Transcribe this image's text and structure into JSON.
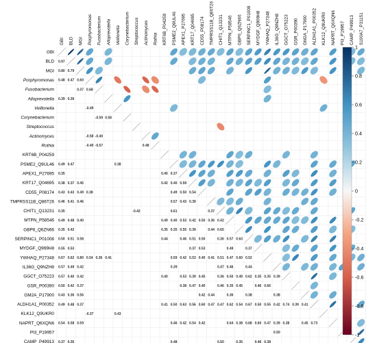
{
  "chart_data": {
    "type": "heatmap",
    "title": "",
    "xlabel": "",
    "ylabel": "",
    "variables": [
      "GBI",
      "BLD",
      "MGI",
      "Porphyromonas",
      "Fusobacterium",
      "Alloprevotella",
      "Veillonella",
      "Corynebacterium",
      "Streptococcus",
      "Actinomyces",
      "Rothia",
      "KRT6B_P04259",
      "PSME2_Q9UL46",
      "APEX1_P27695",
      "KRT17_Q04695",
      "CD55_P08174",
      "TMPRSS11B_Q86T26",
      "CHIT1_Q13231",
      "MTPN_P58546",
      "GBP6_Q6ZN66",
      "SERPINC1_P01008",
      "MYDGF_Q969H8",
      "YWHAQ_P27348",
      "IL36G_Q9NZH8",
      "GGCT_O75223",
      "GSR_P00390",
      "GM2A_P17900",
      "ALDH1A1_P00352",
      "KLK12_Q9UKR0",
      "NAPRT_Q6XQN6",
      "PI3_P19957",
      "CAMP_P49913",
      "S100A7_P31151"
    ],
    "italic_variables": [
      "Porphyromonas",
      "Fusobacterium",
      "Alloprevotella",
      "Veillonella",
      "Corynebacterium",
      "Streptococcus",
      "Actinomyces",
      "Rothia"
    ],
    "lower_triangle": [
      [],
      [
        0.97
      ],
      [
        0.8,
        0.79
      ],
      [
        0.48,
        0.47,
        0.6
      ],
      [
        null,
        null,
        0.37,
        0.68
      ],
      [
        0.39,
        0.39,
        null,
        null,
        null
      ],
      [
        null,
        null,
        null,
        -0.49,
        null,
        null
      ],
      [
        null,
        null,
        null,
        null,
        -0.59,
        0.58,
        null
      ],
      [
        null,
        null,
        null,
        null,
        null,
        null,
        null,
        null
      ],
      [
        null,
        null,
        null,
        -0.58,
        -0.4,
        null,
        null,
        null,
        null
      ],
      [
        null,
        null,
        null,
        -0.4,
        -0.57,
        null,
        null,
        null,
        null,
        0.48
      ],
      [
        null,
        null,
        null,
        null,
        null,
        null,
        null,
        null,
        null,
        null,
        null
      ],
      [
        0.49,
        0.47,
        null,
        null,
        null,
        null,
        0.38,
        null,
        null,
        null,
        null,
        null
      ],
      [
        0.35,
        null,
        null,
        null,
        null,
        null,
        null,
        null,
        null,
        null,
        null,
        0.4,
        0.37
      ],
      [
        0.38,
        0.37,
        0.45,
        null,
        null,
        null,
        null,
        null,
        null,
        null,
        null,
        0.42,
        0.4,
        0.59
      ],
      [
        0.43,
        0.43,
        0.49,
        0.38,
        null,
        null,
        null,
        null,
        null,
        null,
        null,
        null,
        0.49,
        0.5,
        0.54
      ],
      [
        0.46,
        0.41,
        0.46,
        null,
        null,
        null,
        null,
        null,
        null,
        null,
        null,
        null,
        0.57,
        0.43,
        0.39
      ],
      [
        0.35,
        null,
        null,
        null,
        null,
        null,
        null,
        null,
        -0.42,
        null,
        null,
        null,
        0.61,
        null,
        null,
        null,
        0.37
      ],
      [
        0.49,
        0.48,
        0.4,
        null,
        null,
        null,
        null,
        null,
        null,
        null,
        null,
        0.49,
        0.4,
        0.53,
        0.42,
        0.5,
        0.36,
        0.42
      ],
      [
        0.35,
        0.42,
        null,
        null,
        null,
        null,
        null,
        null,
        null,
        null,
        null,
        0.35,
        0.35,
        0.55,
        0.39,
        null,
        0.44,
        0.65
      ],
      [
        0.5,
        0.51,
        0.58,
        null,
        null,
        null,
        null,
        null,
        null,
        null,
        null,
        0.44,
        null,
        0.46,
        0.51,
        0.5,
        null,
        0.36,
        0.57,
        0.63
      ],
      [
        0.55,
        0.53,
        null,
        null,
        null,
        null,
        null,
        null,
        null,
        null,
        null,
        null,
        null,
        null,
        0.37,
        0.53,
        null,
        null,
        0.49,
        null,
        0.37
      ],
      [
        0.67,
        0.62,
        0.8,
        0.54,
        0.36,
        0.41,
        null,
        null,
        null,
        null,
        null,
        null,
        0.59,
        0.42,
        0.53,
        0.4,
        0.41,
        0.51,
        0.47,
        0.6,
        0.52
      ],
      [
        0.57,
        0.49,
        0.42,
        null,
        null,
        null,
        null,
        null,
        null,
        null,
        null,
        null,
        0.39,
        null,
        null,
        null,
        null,
        0.47,
        0.46,
        null,
        0.44
      ],
      [
        0.57,
        0.4,
        0.42,
        null,
        null,
        null,
        null,
        null,
        null,
        null,
        null,
        0.4,
        null,
        0.53,
        0.39,
        0.45,
        null,
        0.36,
        0.5,
        0.49,
        0.62,
        0.35,
        0.35,
        0.39
      ],
      [
        0.5,
        0.42,
        0.37,
        null,
        null,
        null,
        null,
        null,
        null,
        null,
        null,
        null,
        null,
        0.38,
        0.47,
        0.4,
        null,
        0.46,
        0.35,
        0.45,
        null,
        0.46,
        0.66
      ],
      [
        0.43,
        0.36,
        0.56,
        null,
        null,
        null,
        null,
        null,
        null,
        null,
        null,
        null,
        null,
        null,
        null,
        0.42,
        0.44,
        null,
        0.36,
        null,
        0.38,
        null,
        null,
        0.38
      ],
      [
        0.49,
        0.48,
        0.37,
        null,
        null,
        null,
        null,
        null,
        null,
        null,
        null,
        0.41,
        0.5,
        0.63,
        0.56,
        0.6,
        0.47,
        0.47,
        0.62,
        0.54,
        0.67,
        0.5,
        0.55,
        0.42,
        0.74,
        0.39,
        0.41
      ],
      [
        null,
        null,
        null,
        -0.37,
        null,
        null,
        0.43,
        null,
        null,
        null,
        null,
        null,
        null,
        null,
        null,
        null,
        null,
        null,
        null,
        null,
        null,
        null,
        null,
        null,
        null,
        null,
        null,
        null
      ],
      [
        0.54,
        0.58,
        0.59,
        null,
        null,
        null,
        null,
        null,
        null,
        null,
        null,
        null,
        0.46,
        0.42,
        0.54,
        0.42,
        null,
        null,
        0.64,
        0.38,
        0.68,
        0.6,
        0.47,
        0.39,
        0.38,
        null,
        0.45,
        0.73,
        null
      ],
      [
        null,
        null,
        null,
        null,
        null,
        null,
        null,
        null,
        null,
        null,
        null,
        null,
        null,
        null,
        null,
        null,
        null,
        null,
        null,
        null,
        null,
        null,
        null,
        0.5,
        null,
        null,
        null,
        null,
        null,
        null
      ],
      [
        0.37,
        0.35,
        null,
        null,
        null,
        null,
        null,
        null,
        null,
        null,
        null,
        null,
        0.48,
        null,
        null,
        null,
        null,
        0.5,
        null,
        0.35,
        null,
        0.46,
        0.38,
        null,
        null,
        null,
        null,
        null,
        null,
        null,
        null
      ],
      [
        0.47,
        0.36,
        0.38,
        null,
        null,
        null,
        null,
        null,
        null,
        null,
        null,
        null,
        null,
        null,
        null,
        null,
        null,
        null,
        null,
        null,
        null,
        null,
        0.43,
        0.44,
        null,
        null,
        null,
        0.47,
        null,
        0.36,
        0.76,
        0.65
      ]
    ],
    "upper_triangle_omitted_columns": [],
    "legend": {
      "placement": "right",
      "ticks": [
        1,
        0.8,
        0.6,
        0.4,
        0.2,
        0,
        -0.2,
        -0.4,
        -0.6,
        -0.8,
        -1
      ],
      "tick_labels": [
        "1",
        "0.8",
        "0.6",
        "0.4",
        "0.2",
        "0",
        "-0.2",
        "-0.4",
        "-0.6",
        "-0.8",
        "-1"
      ],
      "range": [
        -1,
        1
      ]
    },
    "color_scale": {
      "negative_strong": "#67001f",
      "negative_mid": "#f4a582",
      "neutral": "#ffffff",
      "positive_mid": "#92c5de",
      "positive_strong": "#053061"
    },
    "grid": true,
    "diagonal": "slash"
  }
}
